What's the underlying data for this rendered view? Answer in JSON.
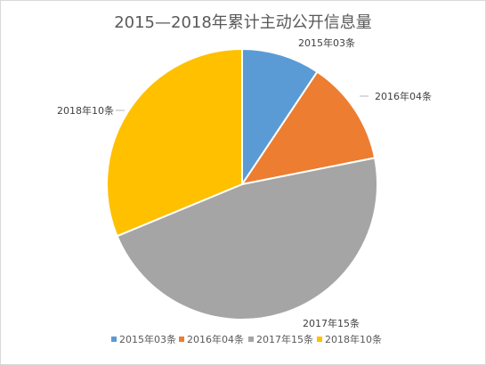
{
  "chart_data": {
    "type": "pie",
    "title": "2015—2018年累计主动公开信息量",
    "categories": [
      "2015年03条",
      "2016年04条",
      "2017年15条",
      "2018年10条"
    ],
    "values": [
      3,
      4,
      15,
      10
    ],
    "data_labels": [
      "2015年03条",
      "2016年04条",
      "2017年15条",
      "2018年10条"
    ],
    "colors": [
      "#5B9BD5",
      "#ED7D31",
      "#A5A5A5",
      "#FFC000"
    ],
    "legend_position": "bottom",
    "start_angle": "12 o'clock",
    "direction": "clockwise"
  }
}
